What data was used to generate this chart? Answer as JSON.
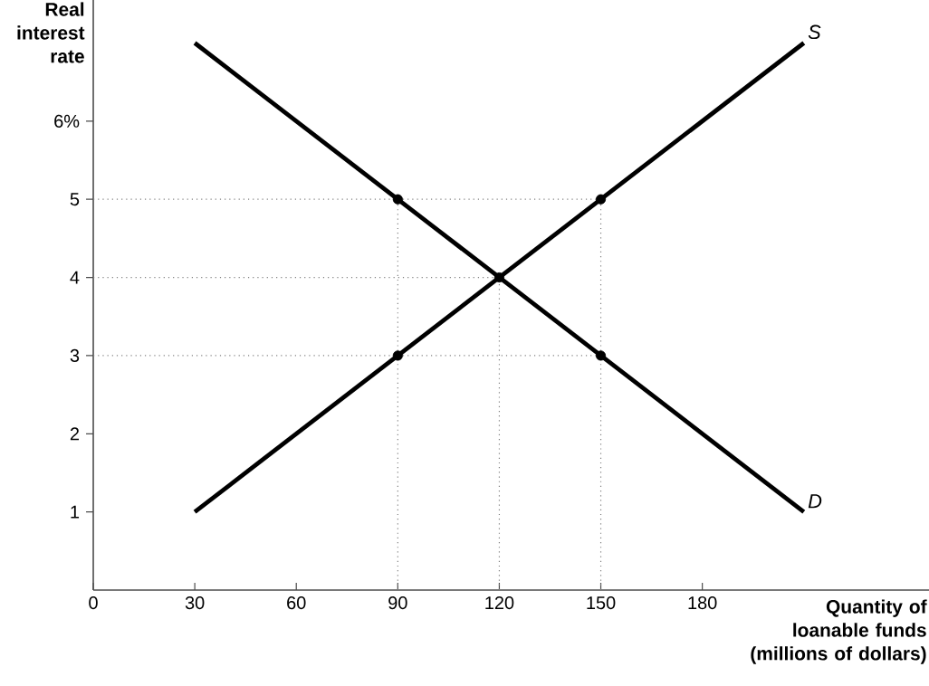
{
  "chart_data": {
    "type": "line",
    "xlabel": "Quantity of loanable funds (millions of dollars)",
    "ylabel": "Real interest rate",
    "xlim": [
      0,
      247
    ],
    "ylim": [
      0,
      7.55
    ],
    "xticks": [
      0,
      30,
      60,
      90,
      120,
      150,
      180
    ],
    "yticks": [
      1,
      2,
      3,
      4,
      5,
      {
        "value": 6,
        "label": "6%"
      }
    ],
    "grid": false,
    "marker": "none",
    "line_style": "solid",
    "series": [
      {
        "color": "#808080",
        "line_style": "dotted",
        "x": [
          0,
          150
        ],
        "values": [
          5,
          5
        ]
      },
      {
        "color": "#808080",
        "line_style": "dotted",
        "x": [
          0,
          120
        ],
        "values": [
          4,
          4
        ]
      },
      {
        "color": "#808080",
        "line_style": "dotted",
        "x": [
          0,
          150
        ],
        "values": [
          3,
          3
        ]
      },
      {
        "color": "#808080",
        "line_style": "dotted",
        "x": [
          90,
          90
        ],
        "values": [
          0,
          5
        ]
      },
      {
        "color": "#808080",
        "line_style": "dotted",
        "x": [
          120,
          120
        ],
        "values": [
          0,
          4
        ]
      },
      {
        "color": "#808080",
        "line_style": "dotted",
        "x": [
          150,
          150
        ],
        "values": [
          0,
          5
        ]
      },
      {
        "name": "S",
        "color": "#000000",
        "x": [
          30,
          210
        ],
        "values": [
          1,
          7
        ]
      },
      {
        "name": "D",
        "color": "#000000",
        "x": [
          30,
          210
        ],
        "values": [
          7,
          1
        ]
      },
      {
        "type": "scatter",
        "marker": "circle",
        "color": "#000000",
        "x": [
          90,
          90,
          120,
          150,
          150
        ],
        "values": [
          5,
          3,
          4,
          5,
          3
        ]
      }
    ]
  }
}
